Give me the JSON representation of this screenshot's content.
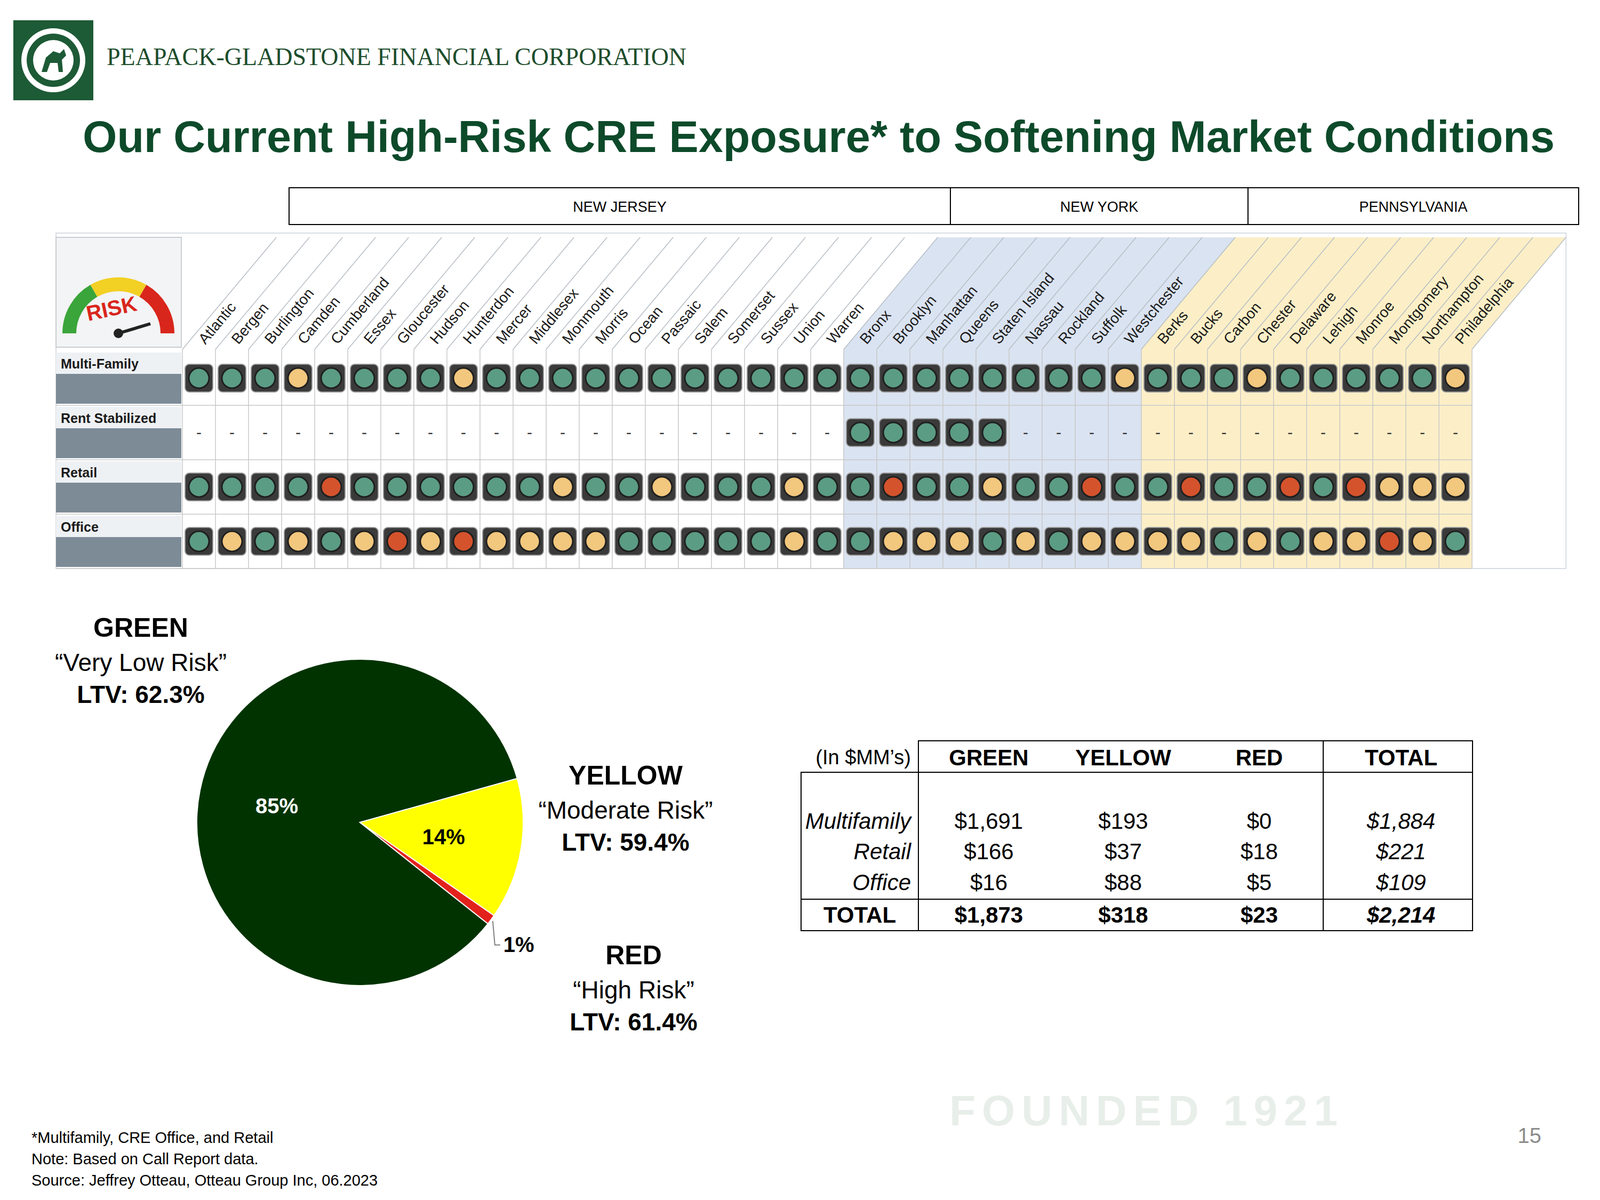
{
  "header": {
    "company": "PEAPACK-GLADSTONE FINANCIAL CORPORATION",
    "title": "Our Current High-Risk CRE Exposure* to Softening Market Conditions"
  },
  "matrix": {
    "gauge_label": "RISK",
    "states": [
      {
        "label": "NEW JERSEY",
        "counties": [
          "Atlantic",
          "Bergen",
          "Burlington",
          "Camden",
          "Cumberland",
          "Essex",
          "Gloucester",
          "Hudson",
          "Hunterdon",
          "Mercer",
          "Middlesex",
          "Monmouth",
          "Morris",
          "Ocean",
          "Passaic",
          "Salem",
          "Somerset",
          "Sussex",
          "Union",
          "Warren"
        ]
      },
      {
        "label": "NEW YORK",
        "counties": [
          "Bronx",
          "Brooklyn",
          "Manhattan",
          "Queens",
          "Staten Island",
          "Nassau",
          "Rockland",
          "Suffolk",
          "Westchester"
        ]
      },
      {
        "label": "PENNSYLVANIA",
        "counties": [
          "Berks",
          "Bucks",
          "Carbon",
          "Chester",
          "Delaware",
          "Lehigh",
          "Monroe",
          "Montgomery",
          "Northampton",
          "Philadelphia"
        ]
      }
    ],
    "rows": [
      {
        "label": "Multi-Family",
        "cells": [
          "green",
          "green",
          "green",
          "yellow",
          "green",
          "green",
          "green",
          "green",
          "yellow",
          "green",
          "green",
          "green",
          "green",
          "green",
          "green",
          "green",
          "green",
          "green",
          "green",
          "green",
          "green",
          "green",
          "green",
          "green",
          "green",
          "green",
          "green",
          "green",
          "yellow",
          "green",
          "green",
          "green",
          "yellow",
          "green",
          "green",
          "green",
          "green",
          "green",
          "yellow"
        ]
      },
      {
        "label": "Rent Stabilized",
        "cells": [
          "-",
          "-",
          "-",
          "-",
          "-",
          "-",
          "-",
          "-",
          "-",
          "-",
          "-",
          "-",
          "-",
          "-",
          "-",
          "-",
          "-",
          "-",
          "-",
          "-",
          "green",
          "green",
          "green",
          "green",
          "green",
          "-",
          "-",
          "-",
          "-",
          "-",
          "-",
          "-",
          "-",
          "-",
          "-",
          "-",
          "-",
          "-",
          "-"
        ]
      },
      {
        "label": "Retail",
        "cells": [
          "green",
          "green",
          "green",
          "green",
          "red",
          "green",
          "green",
          "green",
          "green",
          "green",
          "green",
          "yellow",
          "green",
          "green",
          "yellow",
          "green",
          "green",
          "green",
          "yellow",
          "green",
          "green",
          "red",
          "green",
          "green",
          "yellow",
          "green",
          "green",
          "red",
          "green",
          "green",
          "red",
          "green",
          "green",
          "red",
          "green",
          "red",
          "yellow",
          "yellow",
          "yellow"
        ]
      },
      {
        "label": "Office",
        "cells": [
          "green",
          "yellow",
          "green",
          "yellow",
          "green",
          "yellow",
          "red",
          "yellow",
          "red",
          "yellow",
          "yellow",
          "yellow",
          "yellow",
          "green",
          "green",
          "green",
          "green",
          "green",
          "yellow",
          "green",
          "green",
          "yellow",
          "yellow",
          "yellow",
          "green",
          "yellow",
          "green",
          "yellow",
          "yellow",
          "yellow",
          "yellow",
          "green",
          "yellow",
          "green",
          "yellow",
          "yellow",
          "red",
          "yellow",
          "green"
        ]
      }
    ]
  },
  "chart_data": {
    "type": "pie",
    "categories": [
      "GREEN",
      "YELLOW",
      "RED"
    ],
    "annotations": [
      [
        "“Very Low Risk”",
        "LTV: 62.3%"
      ],
      [
        "“Moderate Risk”",
        "LTV: 59.4%"
      ],
      [
        "“High Risk”",
        "LTV: 61.4%"
      ]
    ],
    "values": [
      85,
      14,
      1
    ],
    "value_labels": [
      "85%",
      "14%",
      "1%"
    ],
    "colors": [
      "#003300",
      "#ffff00",
      "#e3211c"
    ],
    "data_labels": true
  },
  "table": {
    "header": [
      "(In $MM’s)",
      "GREEN",
      "YELLOW",
      "RED",
      "TOTAL"
    ],
    "rows": [
      [
        "Multifamily",
        "$1,691",
        "$193",
        "$0",
        "$1,884"
      ],
      [
        "Retail",
        "$166",
        "$37",
        "$18",
        "$221"
      ],
      [
        "Office",
        "$16",
        "$88",
        "$5",
        "$109"
      ],
      [
        "TOTAL",
        "$1,873",
        "$318",
        "$23",
        "$2,214"
      ]
    ]
  },
  "footnotes": [
    "*Multifamily, CRE Office, and Retail",
    "Note:  Based on Call Report data.",
    "Source:  Jeffrey Otteau, Otteau Group Inc, 06.2023"
  ],
  "page_number": "15",
  "watermark": "FOUNDED 1921"
}
